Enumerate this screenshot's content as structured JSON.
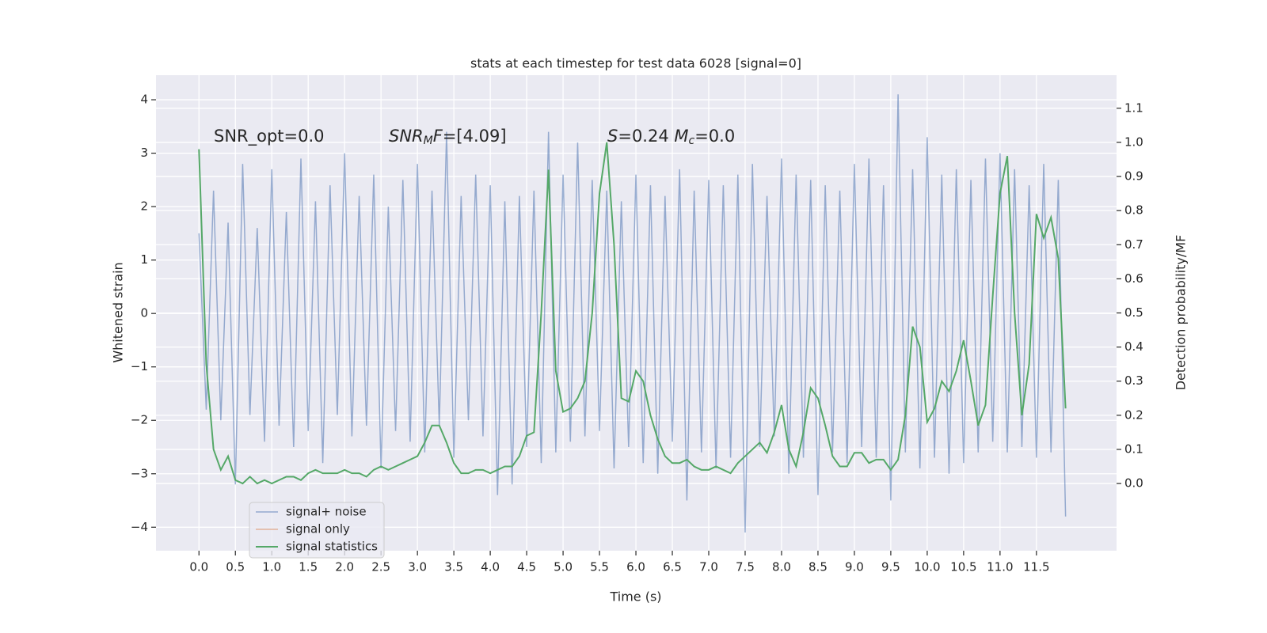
{
  "chart_data": {
    "type": "line",
    "title": "stats at each timestep for test data 6028 [signal=0]",
    "x_label": "Time (s)",
    "y_label": "Whitened strain",
    "y2_label": "Detection probability/MF",
    "annotations": [
      [
        {
          "text": "SNR_opt=0.0",
          "style": "normal"
        }
      ],
      [
        {
          "text": "SNR",
          "style": "italic"
        },
        {
          "text": "M",
          "style": "sub"
        },
        {
          "text": "F",
          "style": "italic"
        },
        {
          "text": "=[4.09]",
          "style": "normal"
        }
      ],
      [
        {
          "text": "S",
          "style": "italic"
        },
        {
          "text": "=0.24   ",
          "style": "normal"
        },
        {
          "text": "M",
          "style": "italic"
        },
        {
          "text": "c",
          "style": "sub"
        },
        {
          "text": "=0.0",
          "style": "normal"
        }
      ]
    ],
    "x": [
      0,
      0.1,
      0.2,
      0.3,
      0.4,
      0.5,
      0.6,
      0.7,
      0.8,
      0.9,
      1,
      1.1,
      1.2,
      1.3,
      1.4,
      1.5,
      1.6,
      1.7,
      1.8,
      1.9,
      2,
      2.1,
      2.2,
      2.3,
      2.4,
      2.5,
      2.6,
      2.7,
      2.8,
      2.9,
      3,
      3.1,
      3.2,
      3.3,
      3.4,
      3.5,
      3.6,
      3.7,
      3.8,
      3.9,
      4,
      4.1,
      4.2,
      4.3,
      4.4,
      4.5,
      4.6,
      4.7,
      4.8,
      4.9,
      5,
      5.1,
      5.2,
      5.3,
      5.4,
      5.5,
      5.6,
      5.7,
      5.8,
      5.9,
      6,
      6.1,
      6.2,
      6.3,
      6.4,
      6.5,
      6.6,
      6.7,
      6.8,
      6.9,
      7,
      7.1,
      7.2,
      7.3,
      7.4,
      7.5,
      7.6,
      7.7,
      7.8,
      7.9,
      8,
      8.1,
      8.2,
      8.3,
      8.4,
      8.5,
      8.6,
      8.7,
      8.8,
      8.9,
      9,
      9.1,
      9.2,
      9.3,
      9.4,
      9.5,
      9.6,
      9.7,
      9.8,
      9.9,
      10,
      10.1,
      10.2,
      10.3,
      10.4,
      10.5,
      10.6,
      10.7,
      10.8,
      10.9,
      11,
      11.1,
      11.2,
      11.3,
      11.4,
      11.5,
      11.6,
      11.7,
      11.8,
      11.9
    ],
    "series": [
      {
        "name": "signal+ noise",
        "color": "#4c72b0",
        "axis": "y",
        "values": [
          1.5,
          -1.8,
          2.3,
          -2.0,
          1.7,
          -3.2,
          2.8,
          -1.9,
          1.6,
          -2.4,
          2.7,
          -2.1,
          1.9,
          -2.5,
          2.9,
          -2.2,
          2.1,
          -2.8,
          2.4,
          -1.9,
          3.0,
          -2.3,
          2.2,
          -2.1,
          2.6,
          -2.9,
          2.0,
          -2.2,
          2.5,
          -2.4,
          2.8,
          -2.6,
          2.3,
          -2.1,
          3.4,
          -2.7,
          2.2,
          -2.0,
          2.6,
          -2.3,
          2.4,
          -3.4,
          2.1,
          -3.2,
          2.2,
          -2.5,
          2.3,
          -2.8,
          3.4,
          -2.6,
          2.6,
          -2.4,
          3.2,
          -2.3,
          2.5,
          -2.2,
          2.3,
          -2.9,
          2.1,
          -2.5,
          2.6,
          -2.8,
          2.4,
          -3.0,
          2.2,
          -2.4,
          2.7,
          -3.5,
          2.3,
          -2.6,
          2.5,
          -2.9,
          2.4,
          -2.7,
          2.6,
          -4.1,
          2.8,
          -2.5,
          2.2,
          -2.3,
          2.9,
          -3.0,
          2.6,
          -2.7,
          2.5,
          -3.4,
          2.4,
          -2.6,
          2.3,
          -2.8,
          2.8,
          -2.5,
          2.9,
          -2.7,
          2.4,
          -3.5,
          4.1,
          -2.6,
          2.7,
          -2.9,
          3.3,
          -2.7,
          2.6,
          -3.0,
          2.7,
          -2.8,
          2.5,
          -2.6,
          2.9,
          -2.4,
          3.0,
          -2.6,
          2.7,
          -2.5,
          2.4,
          -2.7,
          2.8,
          -2.6,
          2.5,
          -3.8
        ]
      },
      {
        "name": "signal only",
        "color": "#dd8452",
        "axis": "y"
      },
      {
        "name": "signal statistics",
        "color": "#55a868",
        "axis": "y2",
        "values": [
          0.98,
          0.35,
          0.1,
          0.04,
          0.08,
          0.01,
          0.0,
          0.02,
          0.0,
          0.01,
          0.0,
          0.01,
          0.02,
          0.02,
          0.01,
          0.03,
          0.04,
          0.03,
          0.03,
          0.03,
          0.04,
          0.03,
          0.03,
          0.02,
          0.04,
          0.05,
          0.04,
          0.05,
          0.06,
          0.07,
          0.08,
          0.12,
          0.17,
          0.17,
          0.12,
          0.06,
          0.03,
          0.03,
          0.04,
          0.04,
          0.03,
          0.04,
          0.05,
          0.05,
          0.08,
          0.14,
          0.15,
          0.5,
          0.92,
          0.33,
          0.21,
          0.22,
          0.25,
          0.3,
          0.5,
          0.85,
          1.0,
          0.7,
          0.25,
          0.24,
          0.33,
          0.3,
          0.2,
          0.13,
          0.08,
          0.06,
          0.06,
          0.07,
          0.05,
          0.04,
          0.04,
          0.05,
          0.04,
          0.03,
          0.06,
          0.08,
          0.1,
          0.12,
          0.09,
          0.15,
          0.23,
          0.1,
          0.05,
          0.15,
          0.28,
          0.25,
          0.17,
          0.08,
          0.05,
          0.05,
          0.09,
          0.09,
          0.06,
          0.07,
          0.07,
          0.04,
          0.07,
          0.2,
          0.46,
          0.4,
          0.18,
          0.22,
          0.3,
          0.27,
          0.33,
          0.42,
          0.3,
          0.17,
          0.23,
          0.55,
          0.85,
          0.96,
          0.5,
          0.2,
          0.35,
          0.79,
          0.72,
          0.78,
          0.66,
          0.22
        ]
      }
    ],
    "xlim": [
      -0.59,
      12.6
    ],
    "ylim": [
      -4.44,
      4.46
    ],
    "y2lim": [
      -0.197,
      1.197
    ],
    "xticks": [
      {
        "value": 0,
        "label": "0.0"
      },
      0.5,
      {
        "value": 1,
        "label": "1.0"
      },
      1.5,
      {
        "value": 2,
        "label": "2.0"
      },
      2.5,
      {
        "value": 3,
        "label": "3.0"
      },
      3.5,
      {
        "value": 4,
        "label": "4.0"
      },
      4.5,
      {
        "value": 5,
        "label": "5.0"
      },
      5.5,
      {
        "value": 6,
        "label": "6.0"
      },
      6.5,
      {
        "value": 7,
        "label": "7.0"
      },
      7.5,
      {
        "value": 8,
        "label": "8.0"
      },
      8.5,
      {
        "value": 9,
        "label": "9.0"
      },
      9.5,
      {
        "value": 10,
        "label": "10.0"
      },
      10.5,
      {
        "value": 11,
        "label": "11.0"
      },
      11.5
    ],
    "yticks": [
      {
        "value": -4,
        "label": "−4"
      },
      {
        "value": -3,
        "label": "−3"
      },
      {
        "value": -2,
        "label": "−2"
      },
      {
        "value": -1,
        "label": "−1"
      },
      0,
      1,
      2,
      3,
      4
    ],
    "y2ticks": [
      {
        "value": 0,
        "label": "0.0"
      },
      0.1,
      0.2,
      0.3,
      0.4,
      0.5,
      0.6,
      0.7,
      0.8,
      0.9,
      {
        "value": 1,
        "label": "1.0"
      },
      1.1
    ],
    "grid": true,
    "legend": "lower left"
  }
}
